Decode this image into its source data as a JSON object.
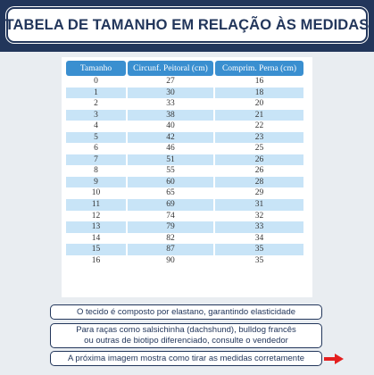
{
  "title": "TABELA DE TAMANHO EM RELAÇÃO ÀS MEDIDAS",
  "table": {
    "headers": [
      "Tamanho",
      "Circunf. Peitoral (cm)",
      "Comprim. Perna (cm)"
    ],
    "rows": [
      [
        "0",
        "27",
        "16"
      ],
      [
        "1",
        "30",
        "18"
      ],
      [
        "2",
        "33",
        "20"
      ],
      [
        "3",
        "38",
        "21"
      ],
      [
        "4",
        "40",
        "22"
      ],
      [
        "5",
        "42",
        "23"
      ],
      [
        "6",
        "46",
        "25"
      ],
      [
        "7",
        "51",
        "26"
      ],
      [
        "8",
        "55",
        "26"
      ],
      [
        "9",
        "60",
        "28"
      ],
      [
        "10",
        "65",
        "29"
      ],
      [
        "11",
        "69",
        "31"
      ],
      [
        "12",
        "74",
        "32"
      ],
      [
        "13",
        "79",
        "33"
      ],
      [
        "14",
        "82",
        "34"
      ],
      [
        "15",
        "87",
        "35"
      ],
      [
        "16",
        "90",
        "35"
      ]
    ]
  },
  "notes": {
    "elastano": "O tecido é composto por elastano, garantindo elasticidade",
    "racas_line1": "Para raças como salsichinha (dachshund), bulldog francês",
    "racas_line2": "ou outras de biotipo diferenciado, consulte o vendedor",
    "proxima": "A próxima imagem mostra como tirar as medidas corretamente"
  },
  "icons": {
    "next": "arrow-right-icon"
  },
  "colors": {
    "navy": "#22365b",
    "header_blue": "#3a8fd0",
    "row_alt": "#c8e4f7",
    "arrow_red": "#e41f1f"
  }
}
